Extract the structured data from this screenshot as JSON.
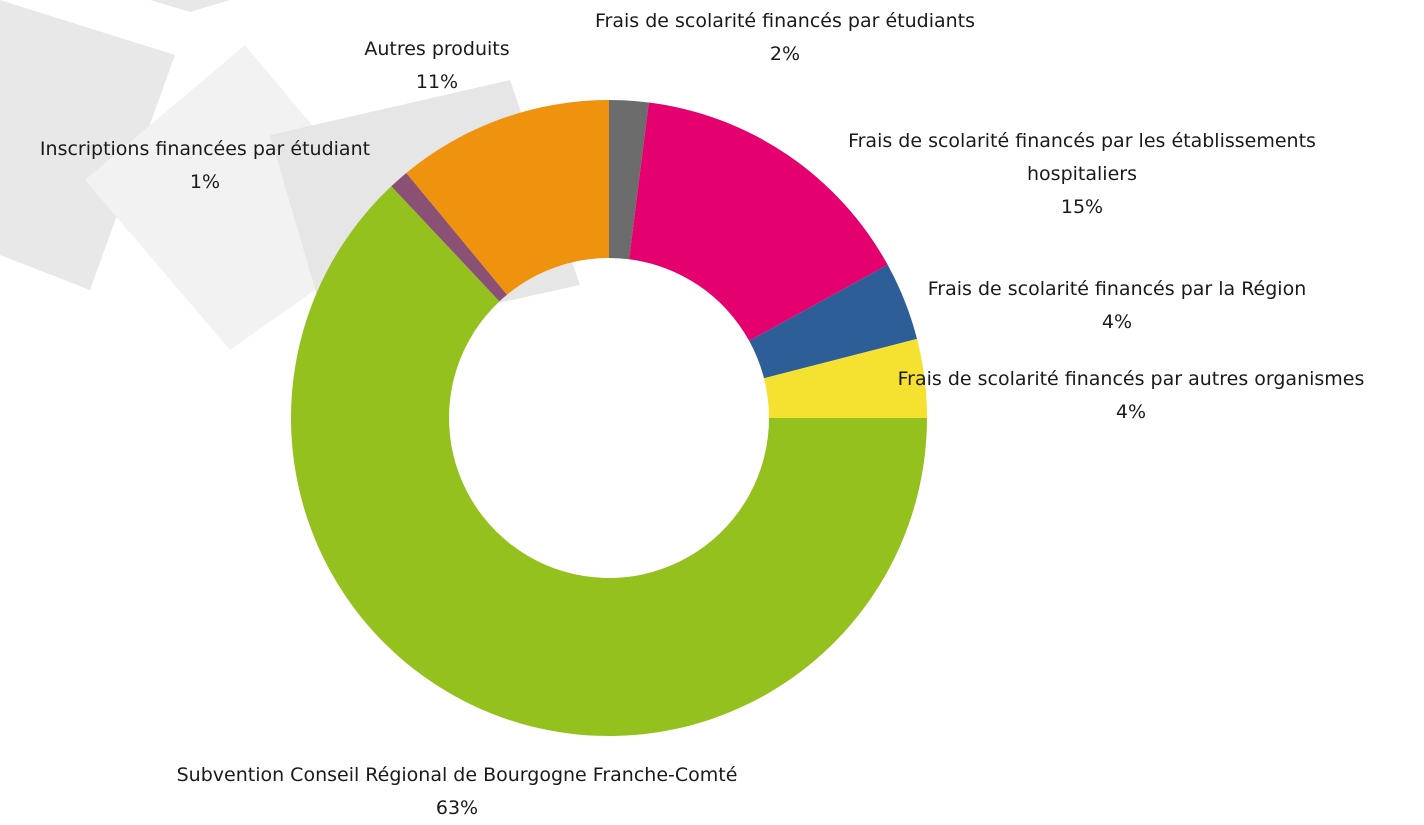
{
  "chart_data": {
    "type": "donut",
    "categories": [
      "Frais de scolarité financés par étudiants",
      "Frais de scolarité financés par les établissements hospitaliers",
      "Frais de scolarité financés par la Région",
      "Frais de scolarité financés par autres organismes",
      "Subvention Conseil Régional de Bourgogne Franche-Comté",
      "Inscriptions financées par étudiant",
      "Autres produits"
    ],
    "values": [
      2,
      15,
      4,
      4,
      63,
      1,
      11
    ],
    "value_labels": [
      "2%",
      "15%",
      "4%",
      "4%",
      "63%",
      "1%",
      "11%"
    ],
    "colors": [
      "#6d6c6c",
      "#e5006f",
      "#2e5e97",
      "#f5e12f",
      "#95c11f",
      "#8b5175",
      "#ef920d"
    ]
  }
}
